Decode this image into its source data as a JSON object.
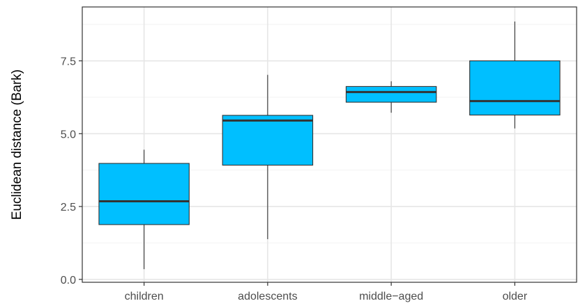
{
  "chart_data": {
    "type": "boxplot",
    "title": "",
    "xlabel": "",
    "ylabel": "Euclidean distance (Bark)",
    "categories": [
      "children",
      "adolescents",
      "middle−aged",
      "older"
    ],
    "boxes": [
      {
        "category": "children",
        "whisker_low": 0.35,
        "q1": 1.88,
        "median": 2.68,
        "q3": 3.98,
        "whisker_high": 4.45
      },
      {
        "category": "adolescents",
        "whisker_low": 1.38,
        "q1": 3.92,
        "median": 5.45,
        "q3": 5.63,
        "whisker_high": 7.02
      },
      {
        "category": "middle−aged",
        "whisker_low": 5.72,
        "q1": 6.08,
        "median": 6.43,
        "q3": 6.62,
        "whisker_high": 6.8
      },
      {
        "category": "older",
        "whisker_low": 5.18,
        "q1": 5.64,
        "median": 6.12,
        "q3": 7.5,
        "whisker_high": 8.85
      }
    ],
    "yticks": [
      0.0,
      2.5,
      5.0,
      7.5
    ],
    "ytick_labels": [
      "0.0",
      "2.5",
      "5.0",
      "7.5"
    ],
    "ylim": [
      -0.1,
      9.35
    ],
    "grid": true,
    "theme": "bw",
    "box_fill": "#00BFFF",
    "line_color": "#333333"
  }
}
